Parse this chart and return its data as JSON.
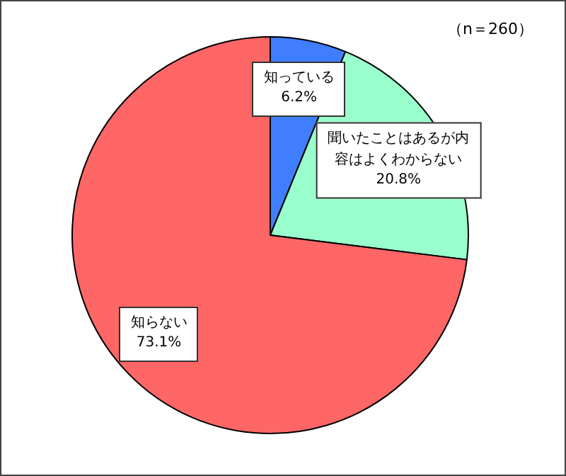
{
  "chart_data": {
    "type": "pie",
    "categories": [
      "知っている",
      "聞いたことはあるが内容はよくわからない",
      "知らない"
    ],
    "values": [
      6.2,
      20.8,
      73.1
    ],
    "value_labels": [
      "6.2%",
      "20.8%",
      "73.1%"
    ],
    "colors": [
      "#3f7fff",
      "#99ffcc",
      "#ff6666"
    ],
    "annotations": [
      "（n＝260）"
    ],
    "legend": false
  }
}
